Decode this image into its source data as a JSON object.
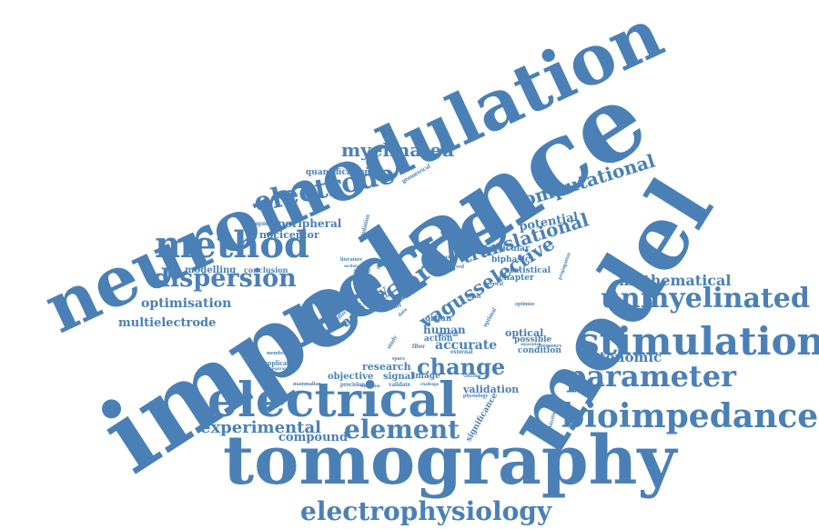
{
  "colors": {
    "word": "#4a80b6",
    "background": "#ffffff"
  },
  "words": [
    {
      "text": "neuromodulation"
    },
    {
      "text": "impedance"
    },
    {
      "text": "nerve"
    },
    {
      "text": "model"
    },
    {
      "text": "tomography"
    },
    {
      "text": "electrical"
    },
    {
      "text": "stimulation"
    },
    {
      "text": "bioimpedance"
    },
    {
      "text": "method"
    },
    {
      "text": "unmyelinated"
    },
    {
      "text": "electrode"
    },
    {
      "text": "parameter"
    },
    {
      "text": "electrophysiology"
    },
    {
      "text": "element"
    },
    {
      "text": "dispersion"
    },
    {
      "text": "myelinated"
    },
    {
      "text": "fibre"
    },
    {
      "text": "computational"
    },
    {
      "text": "translational"
    },
    {
      "text": "change"
    },
    {
      "text": "experimental"
    },
    {
      "text": "mathematical"
    },
    {
      "text": "vagusselective"
    },
    {
      "text": "optimisation"
    },
    {
      "text": "multielectrode"
    },
    {
      "text": "autonomic"
    },
    {
      "text": "activity"
    },
    {
      "text": "accurate"
    },
    {
      "text": "potential"
    },
    {
      "text": "compound"
    },
    {
      "text": "peripheral"
    },
    {
      "text": "nociceptor"
    },
    {
      "text": "modelling"
    },
    {
      "text": "quantification"
    },
    {
      "text": "research"
    },
    {
      "text": "human"
    },
    {
      "text": "action"
    },
    {
      "text": "optical"
    },
    {
      "text": "validation"
    },
    {
      "text": "objective"
    },
    {
      "text": "signal"
    },
    {
      "text": "image"
    },
    {
      "text": "possible"
    },
    {
      "text": "condition"
    },
    {
      "text": "biphasic"
    },
    {
      "text": "fascicular"
    },
    {
      "text": "statistical"
    },
    {
      "text": "chapter"
    },
    {
      "text": "significance"
    },
    {
      "text": "conclusion"
    },
    {
      "text": "development"
    },
    {
      "text": "geometrical"
    },
    {
      "text": "simulation"
    },
    {
      "text": "organ"
    },
    {
      "text": "applicable"
    },
    {
      "text": "membrane"
    },
    {
      "text": "precision"
    },
    {
      "text": "validate"
    },
    {
      "text": "mammalian"
    },
    {
      "text": "limited"
    },
    {
      "text": "result"
    },
    {
      "text": "neural"
    },
    {
      "text": "fiber"
    },
    {
      "text": "effect"
    },
    {
      "text": "realistic"
    },
    {
      "text": "specific"
    },
    {
      "text": "optimal"
    },
    {
      "text": "distance"
    },
    {
      "text": "literature"
    },
    {
      "text": "observed"
    },
    {
      "text": "cervical"
    },
    {
      "text": "propagation"
    },
    {
      "text": "optimise"
    },
    {
      "text": "frequency"
    },
    {
      "text": "external"
    },
    {
      "text": "challenge"
    },
    {
      "text": "velocities"
    },
    {
      "text": "physiology"
    },
    {
      "text": "space"
    },
    {
      "text": "respiratory"
    },
    {
      "text": "stimulator"
    },
    {
      "text": "study"
    },
    {
      "text": "anatomy"
    },
    {
      "text": "bound"
    },
    {
      "text": "data"
    },
    {
      "text": "separation"
    },
    {
      "text": "sectional"
    },
    {
      "text": "heights"
    },
    {
      "text": "optimization"
    }
  ]
}
